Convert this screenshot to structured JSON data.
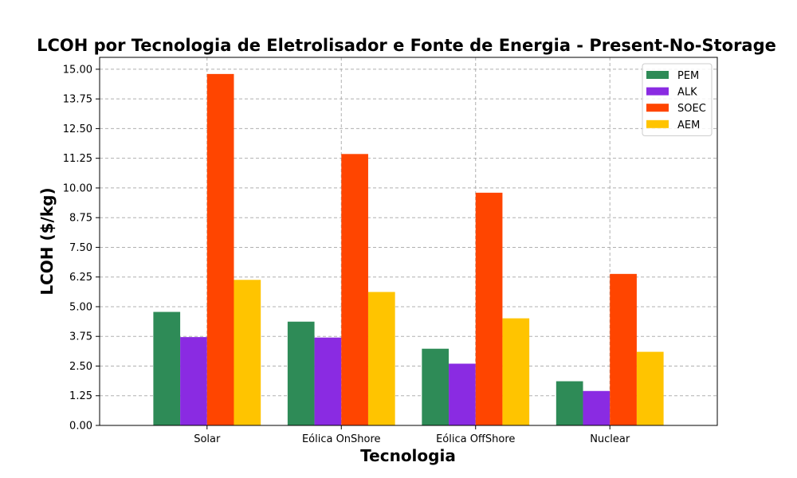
{
  "chart_data": {
    "type": "bar",
    "title": "LCOH por Tecnologia de Eletrolisador e Fonte de Energia - Present-No-Storage",
    "xlabel": "Tecnologia",
    "ylabel": "LCOH ($/kg)",
    "categories": [
      "Solar",
      "Eólica OnShore",
      "Eólica OffShore",
      "Nuclear"
    ],
    "series": [
      {
        "name": "PEM",
        "color": "#2e8b57",
        "values": [
          4.78,
          4.37,
          3.23,
          1.86
        ]
      },
      {
        "name": "ALK",
        "color": "#8a2be2",
        "values": [
          3.72,
          3.7,
          2.6,
          1.45
        ]
      },
      {
        "name": "SOEC",
        "color": "#ff4500",
        "values": [
          14.8,
          11.43,
          9.8,
          6.38
        ]
      },
      {
        "name": "AEM",
        "color": "#ffc400",
        "values": [
          6.13,
          5.62,
          4.51,
          3.1
        ]
      }
    ],
    "ylim": [
      0,
      15.5
    ],
    "yticks": [
      "0.00",
      "1.25",
      "2.50",
      "3.75",
      "5.00",
      "6.25",
      "7.50",
      "8.75",
      "10.00",
      "11.25",
      "12.50",
      "13.75",
      "15.00"
    ],
    "grid": true,
    "legend_position": "top-right"
  }
}
